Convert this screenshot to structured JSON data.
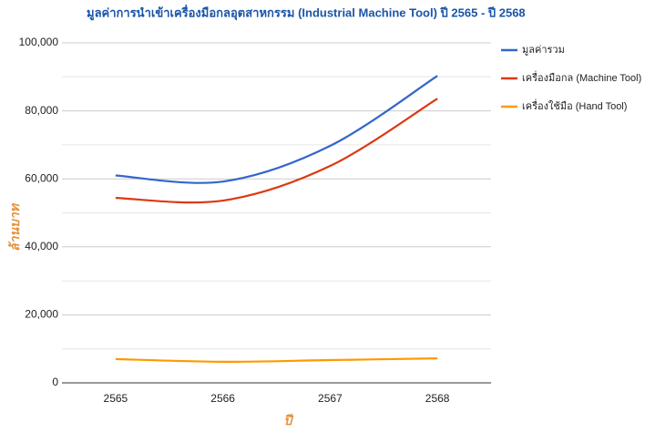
{
  "chart_data": {
    "type": "line",
    "title": "มูลค่าการนำเข้าเครื่องมือกลอุตสาหกรรม (Industrial Machine Tool) ปี 2565 - ปี 2568",
    "x_label": "ปี",
    "y_label": "ล้านบาท",
    "categories": [
      "2565",
      "2566",
      "2567",
      "2568"
    ],
    "series": [
      {
        "name": "มูลค่ารวม",
        "color": "#3366cc",
        "values": [
          61000,
          59200,
          69700,
          90300
        ]
      },
      {
        "name": "เครื่องมือกล (Machine Tool)",
        "color": "#dc3912",
        "values": [
          54400,
          53600,
          63800,
          83600
        ]
      },
      {
        "name": "เครื่องใช้มือ (Hand Tool)",
        "color": "#ff9900",
        "values": [
          7000,
          6200,
          6700,
          7200
        ]
      }
    ],
    "ylim": [
      0,
      100000
    ],
    "yticks": [
      0,
      {
        "value": 20000,
        "label": "20,000"
      },
      {
        "value": 40000,
        "label": "40,000"
      },
      {
        "value": 60000,
        "label": "60,000"
      },
      {
        "value": 80000,
        "label": "80,000"
      },
      {
        "value": 100000,
        "label": "100,000"
      }
    ],
    "minor_yticks": [
      10000,
      30000,
      50000,
      70000,
      90000
    ],
    "grid": true,
    "smooth": true,
    "legend": "right"
  }
}
